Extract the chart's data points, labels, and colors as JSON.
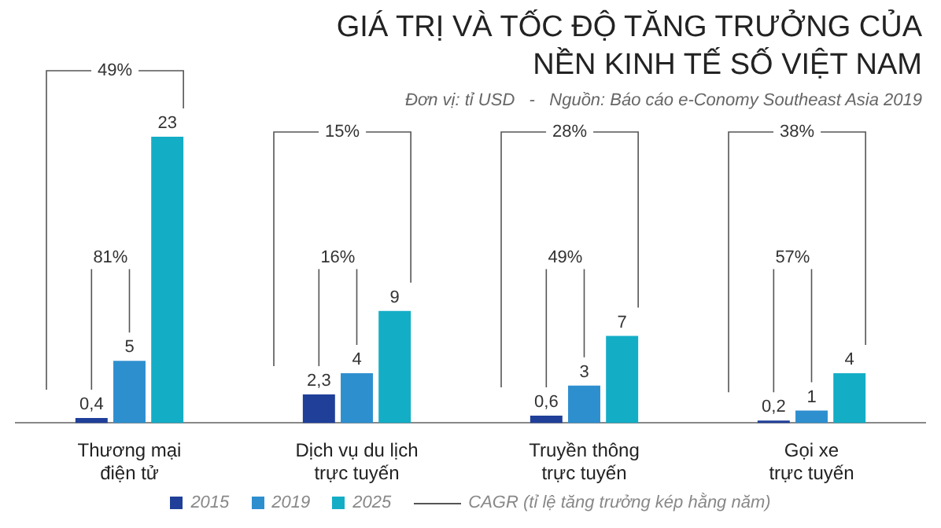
{
  "chart_data": {
    "type": "bar",
    "title": "GIÁ TRỊ VÀ TỐC ĐỘ TĂNG TRƯỞNG CỦA\nNỀN KINH TẾ SỐ VIỆT NAM",
    "subtitle": "Đơn vị: tỉ USD   -   Nguồn: Báo cáo e-Conomy Southeast Asia 2019",
    "categories": [
      "Thương mại\nđiện tử",
      "Dịch vụ du lịch\ntrực tuyến",
      "Truyền thông\ntrực tuyến",
      "Gọi xe\ntrực tuyến"
    ],
    "series": [
      {
        "name": "2015",
        "color": "#1f3f99",
        "values": [
          0.4,
          2.3,
          0.6,
          0.2
        ],
        "value_labels": [
          "0,4",
          "2,3",
          "0,6",
          "0,2"
        ]
      },
      {
        "name": "2019",
        "color": "#2e8fcf",
        "values": [
          5,
          4,
          3,
          1
        ],
        "value_labels": [
          "5",
          "4",
          "3",
          "1"
        ]
      },
      {
        "name": "2025",
        "color": "#14adc6",
        "values": [
          23,
          9,
          7,
          4
        ],
        "value_labels": [
          "23",
          "9",
          "7",
          "4"
        ]
      }
    ],
    "annotations": [
      "81%",
      "49%",
      "16%",
      "15%",
      "49%",
      "28%",
      "57%",
      "38%",
      "CAGR (tỉ lệ tăng trưởng kép hằng năm)"
    ],
    "legend": "bottom"
  }
}
